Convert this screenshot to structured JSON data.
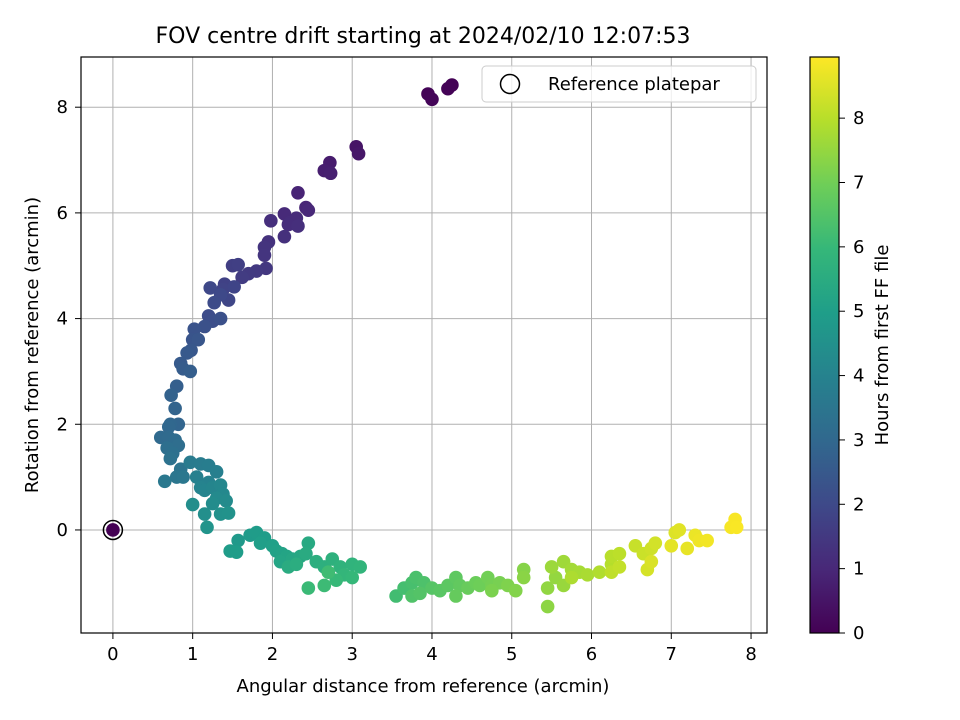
{
  "chart_data": {
    "type": "scatter",
    "title": "FOV centre drift starting at 2024/02/10 12:07:53",
    "xlabel": "Angular distance from reference (arcmin)",
    "ylabel": "Rotation from reference (arcmin)",
    "xlim": [
      -0.4,
      8.2
    ],
    "ylim": [
      -1.95,
      8.95
    ],
    "xticks": [
      0,
      1,
      2,
      3,
      4,
      5,
      6,
      7,
      8
    ],
    "yticks": [
      0,
      2,
      4,
      6,
      8
    ],
    "grid": true,
    "legend": {
      "position": "top-right",
      "entries": [
        "Reference platepar"
      ]
    },
    "reference_point": {
      "x": 0,
      "y": 0
    },
    "colorbar": {
      "label": "Hours from first FF file",
      "range": [
        0,
        8.95
      ],
      "ticks": [
        0,
        1,
        2,
        3,
        4,
        5,
        6,
        7,
        8
      ],
      "colormap": "viridis"
    },
    "colors": {
      "colormap_stops": [
        "#440154",
        "#482878",
        "#3e4989",
        "#31688e",
        "#26828e",
        "#1f9e89",
        "#35b779",
        "#6ece58",
        "#b5de2b",
        "#fde725"
      ]
    },
    "series": [
      {
        "points": [
          [
            0,
            0,
            0
          ],
          [
            4.25,
            8.42,
            0.02
          ],
          [
            4.2,
            8.35,
            0.05
          ],
          [
            3.95,
            8.25,
            0.08
          ],
          [
            4.0,
            8.15,
            0.1
          ],
          [
            3.05,
            7.25,
            0.5
          ],
          [
            3.08,
            7.12,
            0.55
          ],
          [
            2.72,
            6.95,
            0.7
          ],
          [
            2.65,
            6.8,
            0.75
          ],
          [
            2.73,
            6.75,
            0.78
          ],
          [
            2.32,
            6.38,
            0.9
          ],
          [
            2.42,
            6.1,
            0.95
          ],
          [
            2.45,
            6.05,
            1.0
          ],
          [
            2.15,
            5.98,
            1.05
          ],
          [
            2.3,
            5.9,
            1.1
          ],
          [
            2.22,
            5.82,
            1.12
          ],
          [
            2.2,
            5.78,
            1.15
          ],
          [
            1.98,
            5.85,
            1.2
          ],
          [
            2.32,
            5.75,
            1.22
          ],
          [
            2.15,
            5.55,
            1.25
          ],
          [
            1.95,
            5.45,
            1.3
          ],
          [
            1.9,
            5.35,
            1.35
          ],
          [
            1.9,
            5.2,
            1.4
          ],
          [
            1.92,
            4.95,
            1.45
          ],
          [
            1.8,
            4.9,
            1.5
          ],
          [
            1.7,
            4.85,
            1.55
          ],
          [
            1.62,
            4.78,
            1.6
          ],
          [
            1.5,
            5.0,
            1.65
          ],
          [
            1.57,
            5.02,
            1.68
          ],
          [
            1.4,
            4.65,
            1.75
          ],
          [
            1.38,
            4.55,
            1.8
          ],
          [
            1.52,
            4.6,
            1.85
          ],
          [
            1.45,
            4.35,
            1.9
          ],
          [
            1.22,
            4.58,
            1.95
          ],
          [
            1.35,
            4.45,
            2.0
          ],
          [
            1.27,
            4.3,
            2.05
          ],
          [
            1.2,
            4.05,
            2.1
          ],
          [
            1.25,
            3.95,
            2.15
          ],
          [
            1.35,
            4.0,
            2.2
          ],
          [
            1.15,
            3.85,
            2.25
          ],
          [
            1.02,
            3.8,
            2.3
          ],
          [
            1.0,
            3.6,
            2.35
          ],
          [
            1.07,
            3.6,
            2.4
          ],
          [
            0.98,
            3.4,
            2.45
          ],
          [
            0.93,
            3.35,
            2.5
          ],
          [
            0.85,
            3.15,
            2.55
          ],
          [
            0.88,
            3.05,
            2.6
          ],
          [
            0.97,
            3.0,
            2.65
          ],
          [
            0.8,
            2.72,
            2.7
          ],
          [
            0.73,
            2.55,
            2.8
          ],
          [
            0.78,
            2.3,
            2.85
          ],
          [
            0.82,
            2.0,
            2.9
          ],
          [
            0.72,
            2.0,
            2.95
          ],
          [
            0.7,
            1.95,
            3.0
          ],
          [
            0.6,
            1.75,
            3.05
          ],
          [
            0.7,
            1.75,
            3.1
          ],
          [
            0.78,
            1.7,
            3.15
          ],
          [
            0.82,
            1.6,
            3.2
          ],
          [
            0.68,
            1.55,
            3.25
          ],
          [
            0.75,
            1.45,
            3.3
          ],
          [
            0.72,
            1.35,
            3.35
          ],
          [
            0.85,
            1.15,
            3.45
          ],
          [
            0.8,
            1.0,
            3.5
          ],
          [
            0.88,
            1.0,
            3.55
          ],
          [
            0.65,
            0.92,
            3.6
          ],
          [
            0.97,
            1.28,
            3.7
          ],
          [
            1.1,
            1.25,
            3.75
          ],
          [
            1.2,
            1.22,
            3.8
          ],
          [
            1.3,
            1.1,
            3.85
          ],
          [
            1.05,
            1.0,
            3.9
          ],
          [
            1.2,
            0.9,
            3.95
          ],
          [
            1.1,
            0.8,
            4.0
          ],
          [
            1.15,
            0.75,
            4.05
          ],
          [
            1.25,
            0.8,
            4.1
          ],
          [
            1.35,
            0.85,
            4.15
          ],
          [
            1.38,
            0.68,
            4.2
          ],
          [
            1.3,
            0.6,
            4.25
          ],
          [
            1.42,
            0.55,
            4.3
          ],
          [
            1.25,
            0.5,
            4.35
          ],
          [
            1.0,
            0.48,
            4.4
          ],
          [
            1.15,
            0.3,
            4.45
          ],
          [
            1.35,
            0.3,
            4.5
          ],
          [
            1.45,
            0.32,
            4.55
          ],
          [
            1.18,
            0.05,
            4.6
          ],
          [
            1.57,
            -0.2,
            4.8
          ],
          [
            1.72,
            -0.1,
            4.85
          ],
          [
            1.8,
            -0.05,
            4.9
          ],
          [
            1.9,
            -0.15,
            4.95
          ],
          [
            1.85,
            -0.25,
            5.0
          ],
          [
            2.0,
            -0.3,
            5.05
          ],
          [
            2.05,
            -0.4,
            5.1
          ],
          [
            2.12,
            -0.45,
            5.15
          ],
          [
            2.18,
            -0.5,
            5.2
          ],
          [
            2.1,
            -0.6,
            5.25
          ],
          [
            2.25,
            -0.55,
            5.3
          ],
          [
            2.35,
            -0.5,
            5.35
          ],
          [
            2.45,
            -0.25,
            5.4
          ],
          [
            2.42,
            -0.45,
            5.45
          ],
          [
            2.2,
            -0.7,
            5.5
          ],
          [
            2.3,
            -0.65,
            5.55
          ],
          [
            1.47,
            -0.4,
            4.9
          ],
          [
            1.55,
            -0.42,
            4.95
          ],
          [
            2.55,
            -0.6,
            5.6
          ],
          [
            2.65,
            -0.7,
            5.65
          ],
          [
            2.75,
            -0.55,
            5.7
          ],
          [
            2.85,
            -0.7,
            5.75
          ],
          [
            3.0,
            -0.65,
            5.8
          ],
          [
            3.1,
            -0.7,
            5.85
          ],
          [
            2.9,
            -0.85,
            5.9
          ],
          [
            3.0,
            -0.9,
            5.95
          ],
          [
            2.8,
            -0.95,
            6.0
          ],
          [
            2.45,
            -1.1,
            6.05
          ],
          [
            2.65,
            -1.05,
            6.1
          ],
          [
            2.7,
            -0.8,
            6.15
          ],
          [
            3.55,
            -1.25,
            6.2
          ],
          [
            3.65,
            -1.1,
            6.25
          ],
          [
            3.75,
            -1.0,
            6.3
          ],
          [
            3.8,
            -0.9,
            6.35
          ],
          [
            3.9,
            -1.0,
            6.4
          ],
          [
            3.75,
            -1.25,
            6.45
          ],
          [
            3.85,
            -1.2,
            6.5
          ],
          [
            4.0,
            -1.1,
            6.55
          ],
          [
            4.1,
            -1.15,
            6.6
          ],
          [
            4.2,
            -1.05,
            6.65
          ],
          [
            4.3,
            -0.9,
            6.7
          ],
          [
            4.35,
            -1.05,
            6.75
          ],
          [
            4.3,
            -1.25,
            6.8
          ],
          [
            4.45,
            -1.1,
            6.85
          ],
          [
            4.55,
            -1.0,
            6.9
          ],
          [
            4.6,
            -1.05,
            6.95
          ],
          [
            4.7,
            -0.9,
            7.0
          ],
          [
            4.75,
            -1.05,
            7.05
          ],
          [
            4.85,
            -1.0,
            7.1
          ],
          [
            4.75,
            -1.15,
            7.15
          ],
          [
            4.95,
            -1.05,
            7.2
          ],
          [
            5.05,
            -1.15,
            7.25
          ],
          [
            5.15,
            -0.75,
            7.3
          ],
          [
            5.15,
            -0.9,
            7.35
          ],
          [
            5.45,
            -1.45,
            7.4
          ],
          [
            5.45,
            -1.1,
            7.45
          ],
          [
            5.55,
            -0.9,
            7.5
          ],
          [
            5.65,
            -1.05,
            7.55
          ],
          [
            5.5,
            -0.7,
            7.6
          ],
          [
            5.65,
            -0.6,
            7.65
          ],
          [
            5.75,
            -0.75,
            7.7
          ],
          [
            5.85,
            -0.8,
            7.75
          ],
          [
            5.95,
            -0.85,
            7.8
          ],
          [
            5.75,
            -0.9,
            7.85
          ],
          [
            6.1,
            -0.8,
            7.9
          ],
          [
            6.25,
            -0.65,
            7.95
          ],
          [
            6.25,
            -0.5,
            8.0
          ],
          [
            6.35,
            -0.45,
            8.05
          ],
          [
            6.25,
            -0.8,
            8.1
          ],
          [
            6.35,
            -0.7,
            8.15
          ],
          [
            6.55,
            -0.3,
            8.2
          ],
          [
            6.65,
            -0.45,
            8.25
          ],
          [
            6.75,
            -0.35,
            8.3
          ],
          [
            6.8,
            -0.25,
            8.35
          ],
          [
            6.7,
            -0.75,
            8.4
          ],
          [
            6.75,
            -0.6,
            8.45
          ],
          [
            7.05,
            -0.05,
            8.5
          ],
          [
            7.1,
            0.0,
            8.55
          ],
          [
            7.0,
            -0.3,
            8.6
          ],
          [
            7.2,
            -0.35,
            8.65
          ],
          [
            7.3,
            -0.1,
            8.7
          ],
          [
            7.35,
            -0.2,
            8.75
          ],
          [
            7.45,
            -0.2,
            8.8
          ],
          [
            7.75,
            0.05,
            8.85
          ],
          [
            7.8,
            0.2,
            8.88
          ],
          [
            7.82,
            0.05,
            8.9
          ]
        ]
      }
    ]
  }
}
